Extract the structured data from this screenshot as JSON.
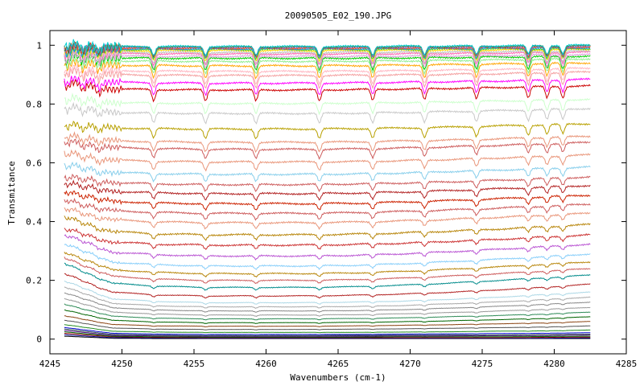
{
  "chart_data": {
    "type": "line",
    "title": "20090505_E02_190.JPG",
    "xlabel": "Wavenumbers (cm-1)",
    "ylabel": "Transmitance",
    "xlim": [
      4245,
      4285
    ],
    "ylim": [
      -0.05,
      1.05
    ],
    "x_ticks": [
      4245,
      4250,
      4255,
      4260,
      4265,
      4270,
      4275,
      4280,
      4285
    ],
    "x_tick_labels": [
      "4245",
      "4250",
      "4255",
      "4260",
      "4265",
      "4270",
      "4275",
      "4280",
      "4285"
    ],
    "y_ticks": [
      0,
      0.2,
      0.4,
      0.6,
      0.8,
      1
    ],
    "y_tick_labels": [
      "0",
      "0.2",
      "0.4",
      "0.6",
      "0.8",
      "1"
    ],
    "x_range_data": [
      4246,
      4282.5
    ],
    "grid": false,
    "legend": "none",
    "absorption_lines_cm1": [
      4246.2,
      4247.3,
      4248.4,
      4252.2,
      4255.8,
      4259.3,
      4263.7,
      4267.4,
      4271.0,
      4274.6,
      4278.2,
      4279.5,
      4280.6
    ],
    "series": [
      {
        "color": "#000000",
        "values": [
          0.01,
          0.003,
          0.002,
          0.002,
          0.002,
          0.002,
          0.002,
          0.002,
          0.002,
          0.002,
          0.002,
          0.002
        ]
      },
      {
        "color": "#00008b",
        "values": [
          0.015,
          0.005,
          0.004,
          0.003,
          0.003,
          0.003,
          0.003,
          0.003,
          0.003,
          0.003,
          0.003,
          0.004
        ]
      },
      {
        "color": "#8b0000",
        "values": [
          0.02,
          0.008,
          0.006,
          0.005,
          0.005,
          0.005,
          0.005,
          0.005,
          0.005,
          0.005,
          0.006,
          0.007
        ]
      },
      {
        "color": "#006400",
        "values": [
          0.025,
          0.01,
          0.008,
          0.007,
          0.007,
          0.007,
          0.007,
          0.008,
          0.008,
          0.008,
          0.009,
          0.01
        ]
      },
      {
        "color": "#4b0082",
        "values": [
          0.03,
          0.013,
          0.011,
          0.01,
          0.01,
          0.01,
          0.01,
          0.011,
          0.011,
          0.012,
          0.013,
          0.014
        ]
      },
      {
        "color": "#2f4f4f",
        "values": [
          0.035,
          0.016,
          0.013,
          0.012,
          0.012,
          0.012,
          0.013,
          0.013,
          0.014,
          0.014,
          0.015,
          0.017
        ]
      },
      {
        "color": "#0000cd",
        "values": [
          0.04,
          0.02,
          0.017,
          0.016,
          0.016,
          0.016,
          0.016,
          0.017,
          0.018,
          0.019,
          0.02,
          0.022
        ]
      },
      {
        "color": "#228b22",
        "values": [
          0.05,
          0.027,
          0.024,
          0.023,
          0.023,
          0.023,
          0.023,
          0.024,
          0.025,
          0.027,
          0.028,
          0.031
        ]
      },
      {
        "color": "#555555",
        "values": [
          0.065,
          0.038,
          0.034,
          0.033,
          0.033,
          0.033,
          0.034,
          0.035,
          0.037,
          0.039,
          0.041,
          0.045
        ]
      },
      {
        "color": "#8b4513",
        "values": [
          0.08,
          0.05,
          0.045,
          0.044,
          0.044,
          0.044,
          0.045,
          0.047,
          0.049,
          0.052,
          0.055,
          0.06
        ]
      },
      {
        "color": "#006400",
        "values": [
          0.1,
          0.064,
          0.058,
          0.056,
          0.056,
          0.056,
          0.057,
          0.059,
          0.062,
          0.066,
          0.07,
          0.076
        ]
      },
      {
        "color": "#2e8b57",
        "values": [
          0.12,
          0.078,
          0.071,
          0.069,
          0.069,
          0.069,
          0.07,
          0.072,
          0.076,
          0.08,
          0.085,
          0.092
        ]
      },
      {
        "color": "#999999",
        "values": [
          0.14,
          0.092,
          0.085,
          0.082,
          0.082,
          0.082,
          0.083,
          0.086,
          0.09,
          0.095,
          0.101,
          0.108
        ]
      },
      {
        "color": "#888888",
        "values": [
          0.16,
          0.107,
          0.099,
          0.096,
          0.096,
          0.096,
          0.097,
          0.1,
          0.105,
          0.111,
          0.118,
          0.126
        ]
      },
      {
        "color": "#a9a9a9",
        "values": [
          0.18,
          0.122,
          0.113,
          0.11,
          0.11,
          0.11,
          0.111,
          0.114,
          0.12,
          0.126,
          0.134,
          0.143
        ]
      },
      {
        "color": "#add8e6",
        "values": [
          0.2,
          0.137,
          0.128,
          0.124,
          0.124,
          0.124,
          0.126,
          0.129,
          0.135,
          0.142,
          0.151,
          0.16
        ]
      },
      {
        "color": "#b22222",
        "values": [
          0.225,
          0.16,
          0.15,
          0.147,
          0.147,
          0.147,
          0.149,
          0.153,
          0.159,
          0.167,
          0.176,
          0.187
        ]
      },
      {
        "color": "#008b8b",
        "values": [
          0.26,
          0.19,
          0.18,
          0.176,
          0.176,
          0.176,
          0.178,
          0.183,
          0.19,
          0.199,
          0.208,
          0.218
        ]
      },
      {
        "color": "#cd5c5c",
        "values": [
          0.28,
          0.214,
          0.204,
          0.2,
          0.2,
          0.2,
          0.202,
          0.207,
          0.214,
          0.222,
          0.231,
          0.24
        ]
      },
      {
        "color": "#b8860b",
        "values": [
          0.3,
          0.236,
          0.227,
          0.223,
          0.223,
          0.223,
          0.225,
          0.23,
          0.237,
          0.245,
          0.254,
          0.263
        ]
      },
      {
        "color": "#87cefa",
        "values": [
          0.33,
          0.262,
          0.253,
          0.249,
          0.249,
          0.249,
          0.251,
          0.256,
          0.263,
          0.271,
          0.28,
          0.29
        ]
      },
      {
        "color": "#ba55d3",
        "values": [
          0.36,
          0.296,
          0.287,
          0.283,
          0.283,
          0.283,
          0.285,
          0.29,
          0.297,
          0.305,
          0.314,
          0.323
        ]
      },
      {
        "color": "#cc3333",
        "values": [
          0.38,
          0.33,
          0.323,
          0.32,
          0.32,
          0.32,
          0.322,
          0.326,
          0.332,
          0.339,
          0.347,
          0.355
        ]
      },
      {
        "color": "#b8860b",
        "values": [
          0.42,
          0.366,
          0.358,
          0.355,
          0.355,
          0.355,
          0.357,
          0.361,
          0.367,
          0.374,
          0.382,
          0.39
        ]
      },
      {
        "color": "#e9967a",
        "values": [
          0.45,
          0.406,
          0.399,
          0.396,
          0.396,
          0.396,
          0.398,
          0.402,
          0.407,
          0.414,
          0.421,
          0.428
        ]
      },
      {
        "color": "#cd5c5c",
        "values": [
          0.48,
          0.437,
          0.431,
          0.428,
          0.428,
          0.428,
          0.43,
          0.434,
          0.439,
          0.445,
          0.452,
          0.459
        ]
      },
      {
        "color": "#cc2200",
        "values": [
          0.51,
          0.469,
          0.463,
          0.461,
          0.461,
          0.461,
          0.462,
          0.466,
          0.471,
          0.477,
          0.484,
          0.49
        ]
      },
      {
        "color": "#b22222",
        "values": [
          0.54,
          0.503,
          0.498,
          0.495,
          0.495,
          0.495,
          0.497,
          0.5,
          0.505,
          0.511,
          0.517,
          0.523
        ]
      },
      {
        "color": "#cd5c5c",
        "values": [
          0.56,
          0.533,
          0.528,
          0.526,
          0.526,
          0.526,
          0.528,
          0.531,
          0.535,
          0.54,
          0.546,
          0.552
        ]
      },
      {
        "color": "#87ceeb",
        "values": [
          0.6,
          0.567,
          0.563,
          0.561,
          0.561,
          0.561,
          0.562,
          0.565,
          0.57,
          0.575,
          0.58,
          0.586
        ]
      },
      {
        "color": "#e9967a",
        "values": [
          0.64,
          0.609,
          0.605,
          0.603,
          0.603,
          0.603,
          0.604,
          0.607,
          0.611,
          0.616,
          0.621,
          0.627
        ]
      },
      {
        "color": "#cd5c5c",
        "values": [
          0.68,
          0.652,
          0.648,
          0.646,
          0.646,
          0.646,
          0.647,
          0.65,
          0.654,
          0.659,
          0.664,
          0.669
        ]
      },
      {
        "color": "#e9967a",
        "values": [
          0.7,
          0.675,
          0.672,
          0.67,
          0.67,
          0.67,
          0.671,
          0.674,
          0.677,
          0.681,
          0.686,
          0.69
        ]
      },
      {
        "color": "#b8a000",
        "values": [
          0.74,
          0.719,
          0.716,
          0.715,
          0.715,
          0.715,
          0.716,
          0.718,
          0.721,
          0.725,
          0.729,
          0.733
        ]
      },
      {
        "color": "#c8c8c8",
        "values": [
          0.8,
          0.772,
          0.769,
          0.768,
          0.768,
          0.768,
          0.769,
          0.771,
          0.774,
          0.777,
          0.781,
          0.785
        ]
      },
      {
        "color": "#ccffcc",
        "values": [
          0.83,
          0.805,
          0.803,
          0.802,
          0.802,
          0.802,
          0.803,
          0.805,
          0.807,
          0.81,
          0.813,
          0.816
        ]
      },
      {
        "color": "#cc0000",
        "values": [
          0.88,
          0.851,
          0.849,
          0.848,
          0.848,
          0.848,
          0.849,
          0.851,
          0.853,
          0.856,
          0.859,
          0.862
        ]
      },
      {
        "color": "#ff00ff",
        "values": [
          0.89,
          0.874,
          0.872,
          0.871,
          0.871,
          0.871,
          0.872,
          0.874,
          0.876,
          0.878,
          0.881,
          0.884
        ]
      },
      {
        "color": "#f4a0a0",
        "values": [
          0.92,
          0.9,
          0.898,
          0.897,
          0.897,
          0.897,
          0.898,
          0.899,
          0.901,
          0.903,
          0.906,
          0.909
        ]
      },
      {
        "color": "#ffb6c1",
        "values": [
          0.93,
          0.913,
          0.912,
          0.911,
          0.911,
          0.911,
          0.912,
          0.913,
          0.915,
          0.917,
          0.919,
          0.922
        ]
      },
      {
        "color": "#ffa500",
        "values": [
          0.95,
          0.932,
          0.931,
          0.93,
          0.93,
          0.93,
          0.931,
          0.932,
          0.934,
          0.936,
          0.938,
          0.94
        ]
      },
      {
        "color": "#90ee90",
        "values": [
          0.96,
          0.947,
          0.946,
          0.945,
          0.945,
          0.945,
          0.946,
          0.947,
          0.948,
          0.95,
          0.952,
          0.954
        ]
      },
      {
        "color": "#00cc00",
        "values": [
          0.97,
          0.957,
          0.956,
          0.956,
          0.956,
          0.956,
          0.956,
          0.957,
          0.958,
          0.96,
          0.961,
          0.963
        ]
      },
      {
        "color": "#dda0dd",
        "values": [
          0.97,
          0.963,
          0.962,
          0.962,
          0.962,
          0.962,
          0.962,
          0.963,
          0.964,
          0.965,
          0.967,
          0.968
        ]
      },
      {
        "color": "#ff69b4",
        "values": [
          0.98,
          0.971,
          0.971,
          0.97,
          0.97,
          0.97,
          0.971,
          0.971,
          0.972,
          0.973,
          0.975,
          0.976
        ]
      },
      {
        "color": "#c0c0c0",
        "values": [
          0.98,
          0.976,
          0.976,
          0.975,
          0.975,
          0.975,
          0.976,
          0.976,
          0.977,
          0.978,
          0.979,
          0.98
        ]
      },
      {
        "color": "#ffd700",
        "values": [
          0.99,
          0.982,
          0.982,
          0.982,
          0.982,
          0.982,
          0.982,
          0.983,
          0.983,
          0.984,
          0.985,
          0.986
        ]
      },
      {
        "color": "#32cd32",
        "values": [
          0.99,
          0.986,
          0.986,
          0.986,
          0.986,
          0.986,
          0.986,
          0.986,
          0.987,
          0.988,
          0.988,
          0.989
        ]
      },
      {
        "color": "#1e90ff",
        "values": [
          0.99,
          0.988,
          0.988,
          0.988,
          0.988,
          0.988,
          0.988,
          0.989,
          0.989,
          0.99,
          0.991,
          0.992
        ]
      },
      {
        "color": "#ff4500",
        "values": [
          1.0,
          0.99,
          0.99,
          0.99,
          0.99,
          0.99,
          0.99,
          0.991,
          0.991,
          0.992,
          0.993,
          0.994
        ]
      },
      {
        "color": "#9370db",
        "values": [
          1.0,
          0.992,
          0.992,
          0.992,
          0.992,
          0.992,
          0.992,
          0.993,
          0.993,
          0.994,
          0.995,
          0.996
        ]
      },
      {
        "color": "#556b2f",
        "values": [
          1.0,
          0.994,
          0.994,
          0.994,
          0.994,
          0.994,
          0.994,
          0.995,
          0.995,
          0.996,
          0.997,
          0.998
        ]
      },
      {
        "color": "#00ced1",
        "values": [
          1.01,
          0.996,
          0.996,
          0.996,
          0.996,
          0.996,
          0.996,
          0.997,
          0.997,
          0.998,
          0.999,
          1.0
        ]
      }
    ]
  }
}
